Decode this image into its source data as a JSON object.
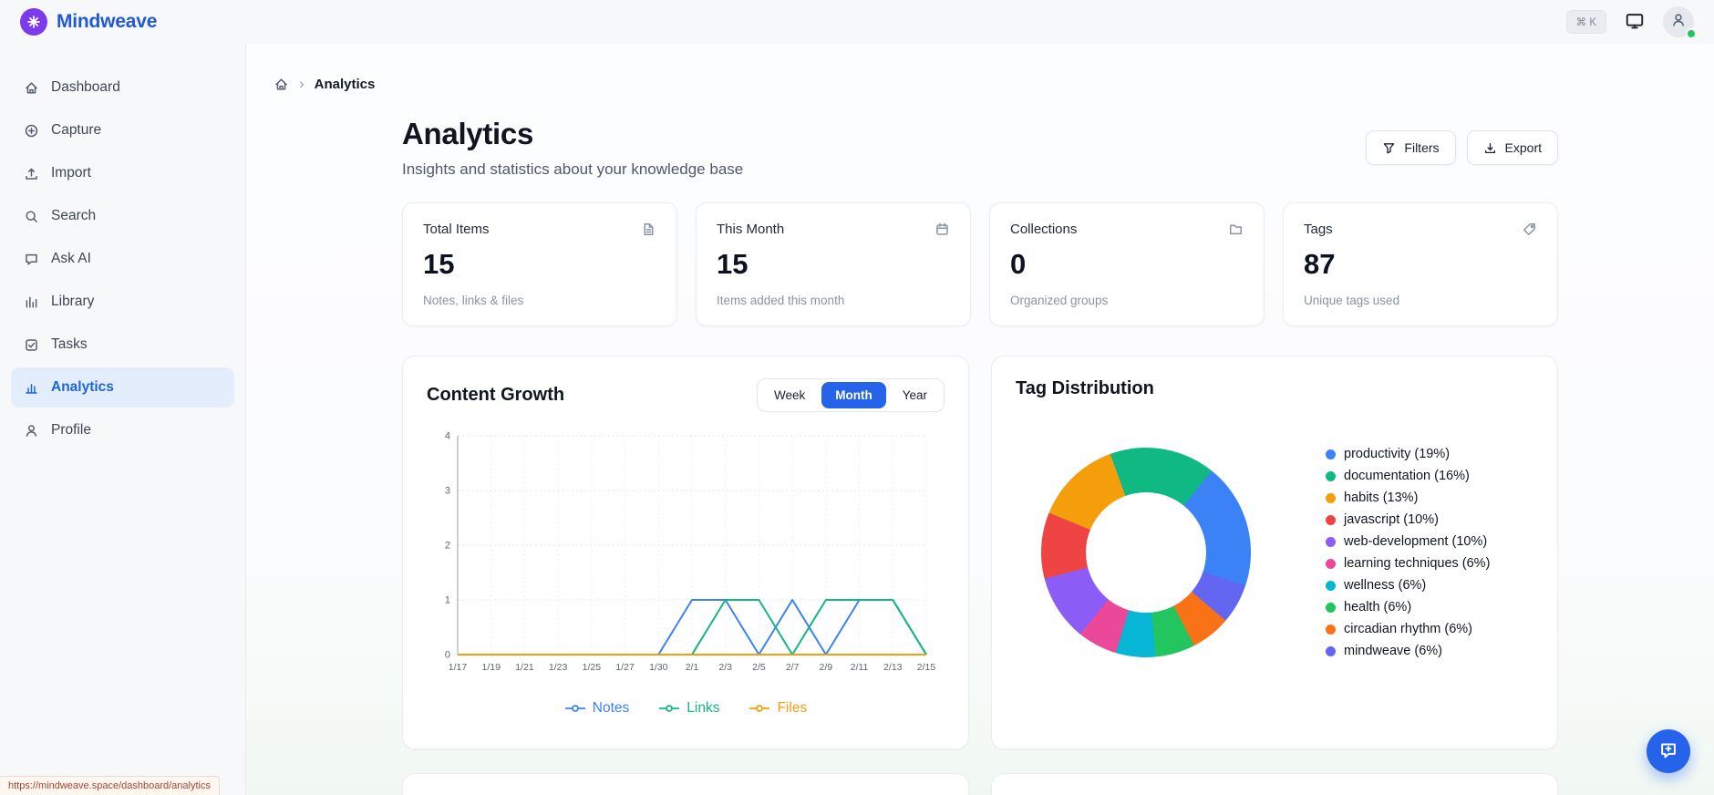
{
  "topbar": {
    "brand": "Mindweave",
    "shortcut": "⌘ K"
  },
  "sidebar": {
    "items": [
      {
        "label": "Dashboard",
        "icon": "home-icon",
        "active": false
      },
      {
        "label": "Capture",
        "icon": "plus-circle-icon",
        "active": false
      },
      {
        "label": "Import",
        "icon": "upload-icon",
        "active": false
      },
      {
        "label": "Search",
        "icon": "search-icon",
        "active": false
      },
      {
        "label": "Ask AI",
        "icon": "chat-icon",
        "active": false
      },
      {
        "label": "Library",
        "icon": "library-icon",
        "active": false
      },
      {
        "label": "Tasks",
        "icon": "tasks-icon",
        "active": false
      },
      {
        "label": "Analytics",
        "icon": "analytics-icon",
        "active": true
      },
      {
        "label": "Profile",
        "icon": "user-icon",
        "active": false
      }
    ]
  },
  "breadcrumb": {
    "current": "Analytics"
  },
  "header": {
    "title": "Analytics",
    "subtitle": "Insights and statistics about your knowledge base",
    "filters_label": "Filters",
    "export_label": "Export"
  },
  "stats": [
    {
      "label": "Total Items",
      "value": "15",
      "caption": "Notes, links & files",
      "icon": "document-icon"
    },
    {
      "label": "This Month",
      "value": "15",
      "caption": "Items added this month",
      "icon": "calendar-icon"
    },
    {
      "label": "Collections",
      "value": "0",
      "caption": "Organized groups",
      "icon": "folder-icon"
    },
    {
      "label": "Tags",
      "value": "87",
      "caption": "Unique tags used",
      "icon": "tag-icon"
    }
  ],
  "growth": {
    "title": "Content Growth",
    "ranges": [
      "Week",
      "Month",
      "Year"
    ],
    "active_range": "Month"
  },
  "tags_card": {
    "title": "Tag Distribution"
  },
  "chart_data": [
    {
      "type": "line",
      "title": "Content Growth",
      "x": [
        "1/17",
        "1/19",
        "1/21",
        "1/23",
        "1/25",
        "1/27",
        "1/30",
        "2/1",
        "2/3",
        "2/5",
        "2/7",
        "2/9",
        "2/11",
        "2/13",
        "2/15"
      ],
      "ylim": [
        0,
        4
      ],
      "yticks": [
        0,
        1,
        2,
        3,
        4
      ],
      "grid": true,
      "legend_position": "bottom",
      "series": [
        {
          "name": "Notes",
          "color": "#3b82f6",
          "values": [
            0,
            0,
            0,
            0,
            0,
            0,
            0,
            1,
            1,
            0,
            1,
            0,
            1,
            1,
            0
          ]
        },
        {
          "name": "Links",
          "color": "#10b981",
          "values": [
            0,
            0,
            0,
            0,
            0,
            0,
            0,
            0,
            1,
            1,
            0,
            1,
            1,
            1,
            0
          ]
        },
        {
          "name": "Files",
          "color": "#f59e0b",
          "values": [
            0,
            0,
            0,
            0,
            0,
            0,
            0,
            0,
            0,
            0,
            0,
            0,
            0,
            0,
            0
          ]
        }
      ]
    },
    {
      "type": "pie",
      "donut": true,
      "title": "Tag Distribution",
      "legend_position": "right",
      "rotation_deg": -20,
      "segments": [
        {
          "label": "productivity",
          "pct": 19,
          "color": "#3b82f6"
        },
        {
          "label": "documentation",
          "pct": 16,
          "color": "#10b981"
        },
        {
          "label": "habits",
          "pct": 13,
          "color": "#f59e0b"
        },
        {
          "label": "javascript",
          "pct": 10,
          "color": "#ef4444"
        },
        {
          "label": "web-development",
          "pct": 10,
          "color": "#8b5cf6"
        },
        {
          "label": "learning techniques",
          "pct": 6,
          "color": "#ec4899"
        },
        {
          "label": "wellness",
          "pct": 6,
          "color": "#06b6d4"
        },
        {
          "label": "health",
          "pct": 6,
          "color": "#22c55e"
        },
        {
          "label": "circadian rhythm",
          "pct": 6,
          "color": "#f97316"
        },
        {
          "label": "mindweave",
          "pct": 6,
          "color": "#6366f1"
        }
      ],
      "draw_order": [
        "documentation",
        "productivity",
        "mindweave",
        "circadian rhythm",
        "health",
        "wellness",
        "learning techniques",
        "web-development",
        "javascript",
        "habits"
      ]
    }
  ],
  "statusbar": {
    "url": "https://mindweave.space/dashboard/analytics"
  },
  "colors": {
    "accent": "#2563eb",
    "logo": "#7c3aed",
    "online": "#22c55e"
  }
}
